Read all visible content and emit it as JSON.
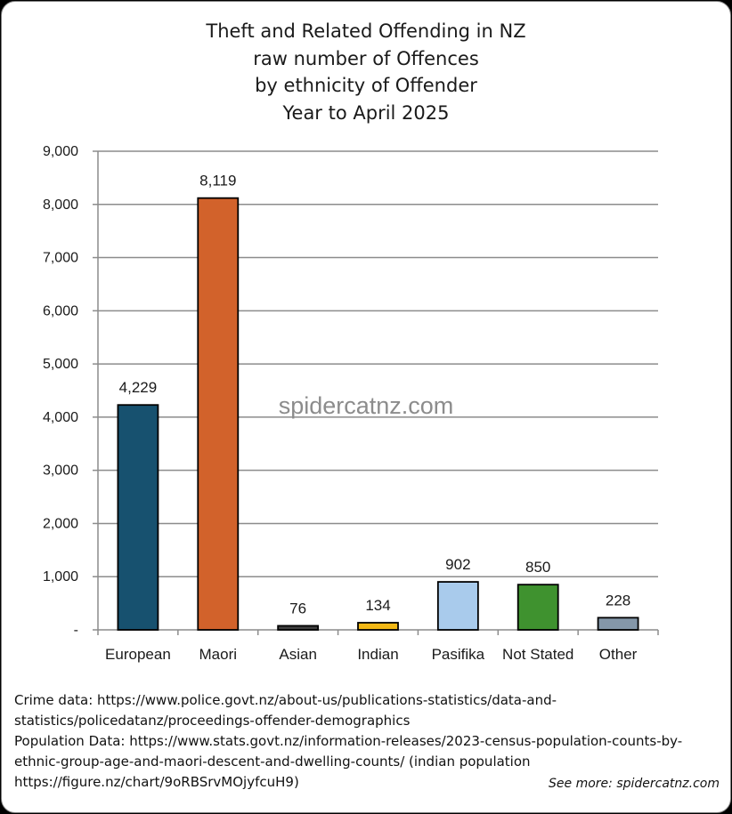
{
  "chart_data": {
    "type": "bar",
    "title_lines": [
      "Theft and Related Offending in NZ",
      "raw number of Offences",
      "by ethnicity of Offender",
      "Year to April 2025"
    ],
    "categories": [
      "European",
      "Maori",
      "Asian",
      "Indian",
      "Pasifika",
      "Not Stated",
      "Other"
    ],
    "values": [
      4229,
      8119,
      76,
      134,
      902,
      850,
      228
    ],
    "value_labels": [
      "4,229",
      "8,119",
      "76",
      "134",
      "902",
      "850",
      "228"
    ],
    "bar_colors": [
      "#17516f",
      "#d2622b",
      "#3f3f3f",
      "#f2b816",
      "#a9cbec",
      "#3f922f",
      "#8497a9"
    ],
    "y_ticks": [
      0,
      1000,
      2000,
      3000,
      4000,
      5000,
      6000,
      7000,
      8000,
      9000
    ],
    "y_tick_labels": [
      "-",
      "1,000",
      "2,000",
      "3,000",
      "4,000",
      "5,000",
      "6,000",
      "7,000",
      "8,000",
      "9,000"
    ],
    "ylim": [
      0,
      9000
    ],
    "grid": true,
    "watermark": "spidercatnz.com"
  },
  "footer": {
    "lines": [
      "Crime data: https://www.police.govt.nz/about-us/publications-statistics/data-and-",
      "statistics/policedatanz/proceedings-offender-demographics",
      "Population Data: https://www.stats.govt.nz/information-releases/2023-census-population-counts-by-",
      "ethnic-group-age-and-maori-descent-and-dwelling-counts/ (indian population",
      "https://figure.nz/chart/9oRBSrvMOjyfcuH9)"
    ],
    "see_more": "See more: spidercatnz.com"
  }
}
